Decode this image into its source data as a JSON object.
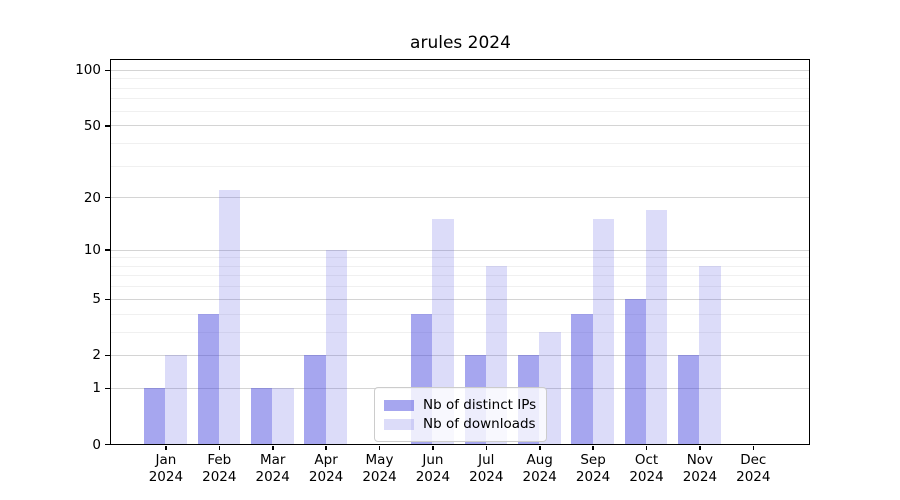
{
  "chart_data": {
    "type": "bar",
    "title": "arules 2024",
    "categories": [
      "Jan 2024",
      "Feb 2024",
      "Mar 2024",
      "Apr 2024",
      "May 2024",
      "Jun 2024",
      "Jul 2024",
      "Aug 2024",
      "Sep 2024",
      "Oct 2024",
      "Nov 2024",
      "Dec 2024"
    ],
    "series": [
      {
        "name": "Nb of distinct IPs",
        "color": "rgba(68,68,221,0.48)",
        "values": [
          1,
          4,
          1,
          2,
          0,
          4,
          2,
          2,
          4,
          5,
          2,
          0
        ]
      },
      {
        "name": "Nb of downloads",
        "color": "rgba(68,68,221,0.19)",
        "values": [
          2,
          22,
          1,
          10,
          0,
          15,
          8,
          3,
          15,
          17,
          8,
          0
        ]
      }
    ],
    "xlabel": "",
    "ylabel": "",
    "yscale": "log1p",
    "ylim": [
      0,
      113
    ],
    "yticks": [
      0,
      1,
      2,
      5,
      10,
      20,
      50,
      100
    ],
    "minor_ticks": [
      3,
      4,
      6,
      7,
      8,
      9,
      30,
      40,
      60,
      70,
      80,
      90
    ],
    "grid": true,
    "legend_position": "lower center"
  },
  "colors": {
    "major_grid": "#d4d4d4",
    "minor_grid": "#f0f0f0",
    "axis": "#000000"
  }
}
